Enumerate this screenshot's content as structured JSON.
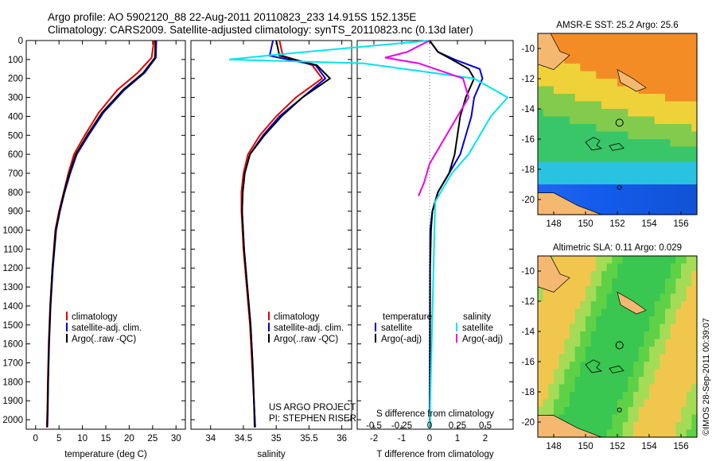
{
  "header": {
    "line1": "Argo profile: AO 5902120_88 22-Aug-2011 20110823_233 14.915S 152.135E",
    "line2": "Climatology: CARS2009. Satellite-adjusted climatology: synTS_20110823.nc (0.13d later)"
  },
  "side_label": "©IMOS 28-Sep-2011 00:39:07",
  "colors": {
    "red": "#e60000",
    "blue": "#0000dd",
    "black": "#000000",
    "cyan": "#00e5ee",
    "magenta": "#ee00ee",
    "land": "#f5b870"
  },
  "chart_data": [
    {
      "type": "line",
      "title": "",
      "xlabel": "temperature (deg C)",
      "ylabel": "",
      "xlim": [
        -2,
        32
      ],
      "ylim": [
        2050,
        0
      ],
      "xticks": [
        0,
        5,
        10,
        15,
        20,
        25,
        30
      ],
      "yticks": [
        0,
        100,
        200,
        300,
        400,
        500,
        600,
        700,
        800,
        900,
        1000,
        1100,
        1200,
        1300,
        1400,
        1500,
        1600,
        1700,
        1800,
        1900,
        2000
      ],
      "legend": [
        "climatology",
        "satellite-adj. clim.",
        "Argo(..raw -QC)"
      ],
      "series": [
        {
          "name": "climatology",
          "color": "#e60000",
          "x": [
            25.3,
            24.8,
            21.8,
            17.5,
            13.5,
            10.5,
            8.2,
            7,
            6,
            5,
            4.2,
            3.6,
            3.1,
            2.8,
            2.6,
            2.5,
            2.4
          ],
          "y": [
            0,
            90,
            170,
            260,
            380,
            500,
            600,
            700,
            800,
            900,
            1000,
            1200,
            1400,
            1600,
            1800,
            1950,
            2040
          ]
        },
        {
          "name": "satellite-adj. clim.",
          "color": "#0000dd",
          "x": [
            25.8,
            25.7,
            23.3,
            19,
            14.5,
            11.3,
            8.8,
            7.4,
            6.2,
            5.2,
            4.4,
            3.7,
            3.2,
            2.9,
            2.7,
            2.6,
            2.5
          ],
          "y": [
            0,
            90,
            170,
            260,
            380,
            500,
            600,
            700,
            800,
            900,
            1000,
            1200,
            1400,
            1600,
            1800,
            1950,
            2040
          ]
        },
        {
          "name": "Argo(..raw -QC)",
          "color": "#000000",
          "x": [
            25.6,
            25.5,
            23,
            18.7,
            14.2,
            11,
            8.6,
            7.2,
            6.1,
            5.1,
            4.3,
            3.6,
            3.15,
            2.85,
            2.65,
            2.55,
            2.45
          ],
          "y": [
            0,
            90,
            170,
            260,
            380,
            500,
            600,
            700,
            800,
            900,
            1000,
            1200,
            1400,
            1600,
            1800,
            1950,
            2040
          ]
        }
      ]
    },
    {
      "type": "line",
      "xlabel": "salinity",
      "xlim": [
        33.7,
        36.15
      ],
      "ylim": [
        2050,
        0
      ],
      "xticks": [
        34,
        34.5,
        35,
        35.5,
        36
      ],
      "legend": [
        "climatology",
        "satellite-adj. clim.",
        "Argo(..raw -QC)"
      ],
      "annotations": [
        "US ARGO PROJECT",
        "PI: STEPHEN RISER"
      ],
      "series": [
        {
          "name": "climatology",
          "color": "#e60000",
          "x": [
            35.05,
            35.1,
            35.55,
            35.7,
            35.3,
            35,
            34.75,
            34.57,
            34.5,
            34.47,
            34.47,
            34.5,
            34.55,
            34.6,
            34.63,
            34.66,
            34.68
          ],
          "y": [
            0,
            80,
            130,
            200,
            300,
            400,
            500,
            600,
            700,
            800,
            900,
            1100,
            1300,
            1500,
            1700,
            1900,
            2040
          ]
        },
        {
          "name": "satellite-adj. clim.",
          "color": "#0000dd",
          "x": [
            34.95,
            34.9,
            35.6,
            35.75,
            35.4,
            35.05,
            34.8,
            34.6,
            34.52,
            34.49,
            34.48,
            34.51,
            34.56,
            34.61,
            34.64,
            34.66,
            34.68
          ],
          "y": [
            0,
            80,
            130,
            200,
            300,
            400,
            500,
            600,
            700,
            800,
            900,
            1100,
            1300,
            1500,
            1700,
            1900,
            2040
          ]
        },
        {
          "name": "Argo(..raw -QC)",
          "color": "#000000",
          "x": [
            35.0,
            35.05,
            35.62,
            35.82,
            35.4,
            35.08,
            34.82,
            34.6,
            34.52,
            34.49,
            34.48,
            34.51,
            34.56,
            34.61,
            34.64,
            34.66,
            34.67
          ],
          "y": [
            0,
            80,
            130,
            200,
            300,
            400,
            500,
            600,
            700,
            800,
            900,
            1100,
            1300,
            1500,
            1700,
            1900,
            2040
          ]
        }
      ]
    },
    {
      "type": "line",
      "xlabel": "T difference from climatology",
      "top_label": "S difference from climatology",
      "xlim": [
        -2.6,
        3.0
      ],
      "s_ticks": [
        -0.5,
        -0.25,
        0,
        0.25,
        0.5
      ],
      "s_tick_labels": [
        "-0.5",
        "-0.25",
        "0",
        "0.25",
        "0.5"
      ],
      "t_ticks": [
        -2,
        -1,
        0,
        1,
        2
      ],
      "legend_groups": {
        "temperature": "temperature",
        "salinity": "salinity"
      },
      "legend": [
        "satellite",
        "Argo(-adj)",
        "satellite",
        "Argo(-adj)"
      ],
      "series": [
        {
          "name": "T satellite",
          "color": "#0000dd",
          "x": [
            0,
            0.3,
            0.9,
            1.8,
            1.9,
            1.6,
            1.5,
            1.3,
            1.1,
            0.7,
            0.3,
            0.1,
            0.02,
            0.01,
            0.0
          ],
          "y": [
            0,
            60,
            100,
            150,
            200,
            300,
            400,
            500,
            600,
            700,
            800,
            900,
            1000,
            1200,
            2040
          ]
        },
        {
          "name": "T Argo(-adj)",
          "color": "#000000",
          "x": [
            0,
            0.3,
            0.8,
            1.4,
            1.6,
            1.3,
            1.1,
            0.9,
            0.7,
            0.3,
            0.1,
            0.05,
            0.02,
            0.01
          ],
          "y": [
            0,
            60,
            100,
            150,
            200,
            300,
            400,
            600,
            700,
            800,
            900,
            1000,
            1200,
            2040
          ]
        },
        {
          "name": "S satellite",
          "color": "#00e5ee",
          "x": [
            0,
            -1.3,
            -1.8,
            -0.6,
            0.4,
            0.7,
            0.55,
            0.35,
            0.2,
            0.05,
            0.0
          ],
          "y": [
            0,
            70,
            100,
            120,
            200,
            300,
            400,
            600,
            700,
            850,
            2040
          ]
        },
        {
          "name": "S Argo(-adj)",
          "color": "#ee00ee",
          "x": [
            0,
            -0.2,
            -0.4,
            -0.1,
            0.3,
            0.35,
            0.25,
            0.1,
            0.0,
            -0.05,
            -0.1
          ],
          "y": [
            0,
            60,
            90,
            120,
            200,
            300,
            400,
            550,
            650,
            750,
            820
          ]
        }
      ]
    },
    {
      "type": "heatmap",
      "title": "AMSR-E SST: 25.2 Argo: 25.6",
      "xticks": [
        148,
        150,
        152,
        154,
        156
      ],
      "yticks": [
        -10,
        -12,
        -14,
        -16,
        -18,
        -20
      ],
      "argo_position": [
        152.135,
        -14.915
      ]
    },
    {
      "type": "heatmap",
      "title": "Altimetric SLA: 0.11 Argo: 0.029",
      "xticks": [
        148,
        150,
        152,
        154,
        156
      ],
      "yticks": [
        -10,
        -12,
        -14,
        -16,
        -18,
        -20
      ],
      "argo_position": [
        152.135,
        -14.915
      ]
    }
  ]
}
